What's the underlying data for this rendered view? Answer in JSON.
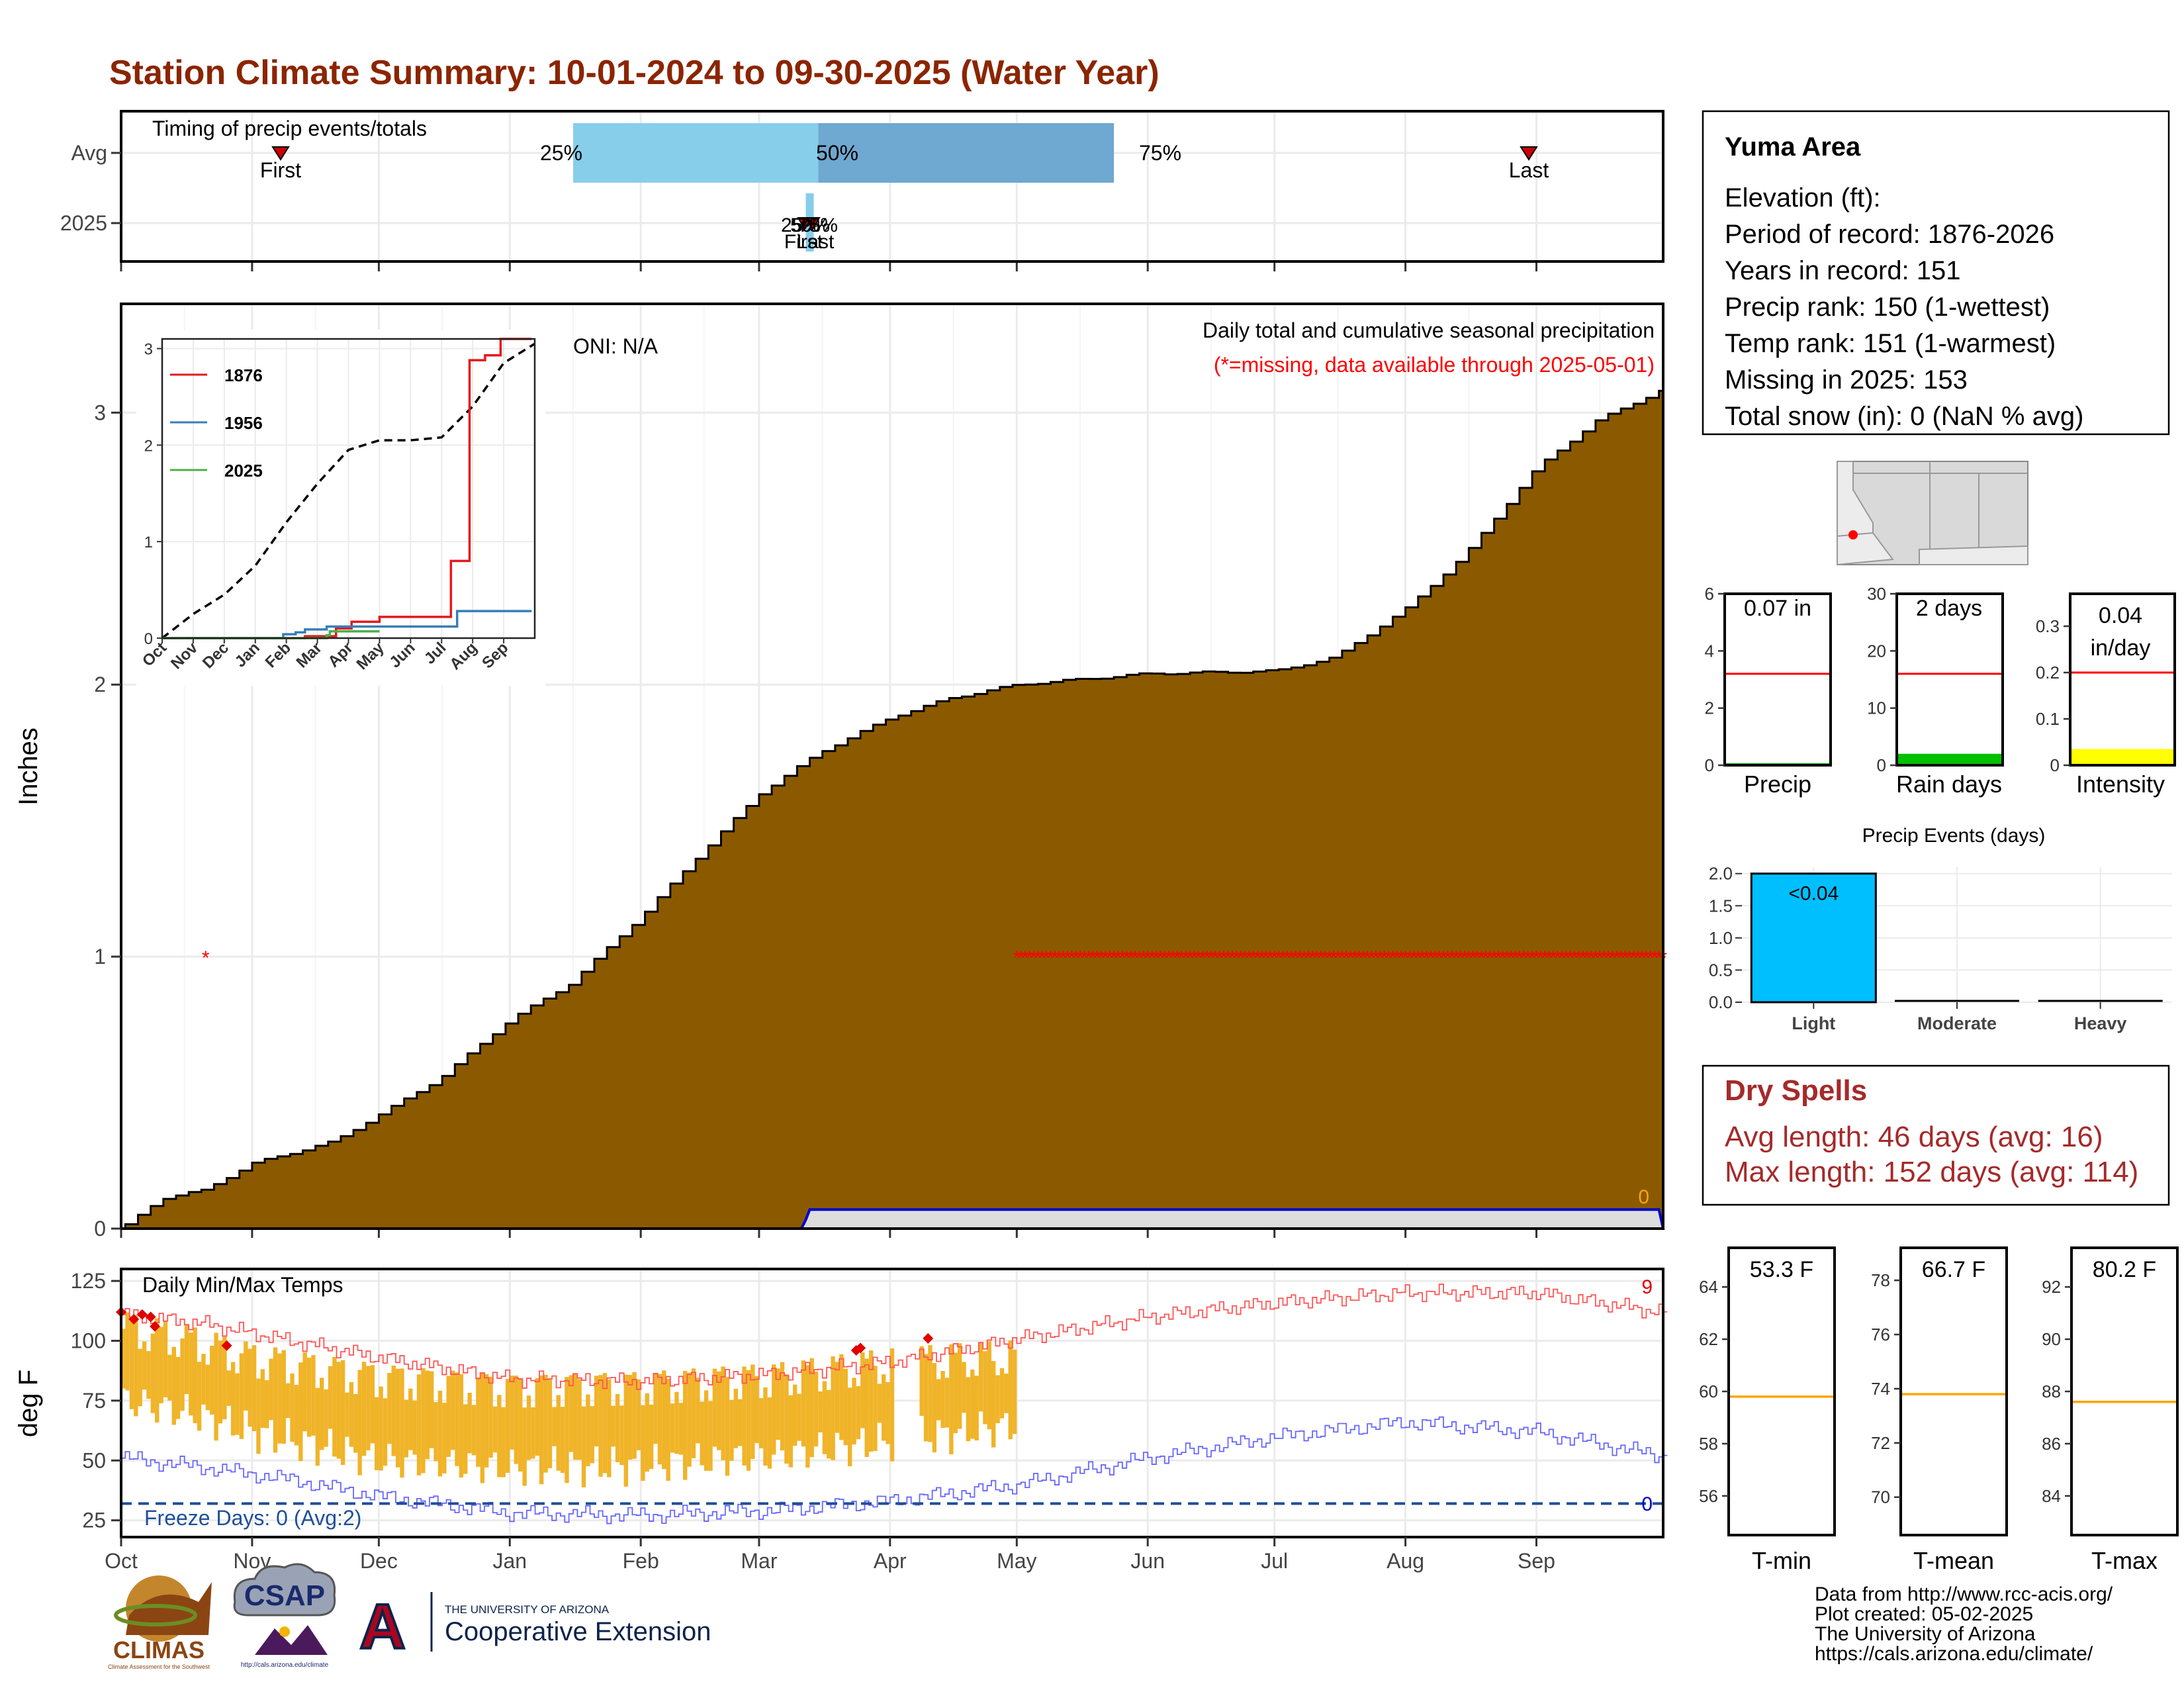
{
  "title": "Station Climate Summary: 10-01-2024 to 09-30-2025 (Water Year)",
  "timing": {
    "heading": "Timing of precip events/totals",
    "rows": [
      "Avg",
      "2025"
    ],
    "avg_first_label": "First",
    "avg_last_label": "Last",
    "pct_labels": [
      "25%",
      "50%",
      "75%"
    ],
    "overlap_labels_2025": [
      "25%",
      "50%",
      "75%",
      "First",
      "Last"
    ],
    "avg_first_date": "2024-11-12",
    "avg_last_date": "2025-09-10",
    "avg_p25_date": "2025-01-16",
    "avg_p50_date": "2025-03-15",
    "avg_p75_date": "2025-05-24",
    "y2025_date": "2025-03-13"
  },
  "precip_panel": {
    "ylabel": "Inches",
    "annotation_title": "Daily total and cumulative seasonal precipitation",
    "annotation_missing": "(*=missing, data available through 2025-05-01)",
    "oni": "ONI: N/A",
    "snow_total_label": "0",
    "ylim": [
      0,
      3.4
    ],
    "yticks": [
      0,
      1,
      2,
      3
    ],
    "missing_marker_label": "*",
    "missing_marker_single": {
      "date": "2024-10-21",
      "value": 1.0
    },
    "missing_marker_run": {
      "from": "2025-05-01",
      "to": "2025-09-30",
      "value": 1.0
    },
    "colors": {
      "cumulative_avg_fill": "#8B5A00",
      "missing": "#ff0000",
      "obs_line": "#0000cc",
      "obs_fill": "#dddddd",
      "snow": "#ffa500"
    },
    "cumulative_avg": [
      {
        "date": "2024-10-01",
        "value": 0.0
      },
      {
        "date": "2024-10-10",
        "value": 0.11
      },
      {
        "date": "2024-10-20",
        "value": 0.14
      },
      {
        "date": "2024-11-01",
        "value": 0.24
      },
      {
        "date": "2024-11-20",
        "value": 0.32
      },
      {
        "date": "2024-12-01",
        "value": 0.42
      },
      {
        "date": "2024-12-15",
        "value": 0.55
      },
      {
        "date": "2025-01-01",
        "value": 0.77
      },
      {
        "date": "2025-01-15",
        "value": 0.9
      },
      {
        "date": "2025-02-01",
        "value": 1.15
      },
      {
        "date": "2025-02-15",
        "value": 1.38
      },
      {
        "date": "2025-03-01",
        "value": 1.6
      },
      {
        "date": "2025-03-15",
        "value": 1.75
      },
      {
        "date": "2025-04-01",
        "value": 1.88
      },
      {
        "date": "2025-04-15",
        "value": 1.95
      },
      {
        "date": "2025-05-01",
        "value": 2.0
      },
      {
        "date": "2025-06-01",
        "value": 2.04
      },
      {
        "date": "2025-07-01",
        "value": 2.05
      },
      {
        "date": "2025-07-15",
        "value": 2.1
      },
      {
        "date": "2025-08-01",
        "value": 2.28
      },
      {
        "date": "2025-08-15",
        "value": 2.48
      },
      {
        "date": "2025-09-01",
        "value": 2.8
      },
      {
        "date": "2025-09-15",
        "value": 2.97
      },
      {
        "date": "2025-09-30",
        "value": 3.08
      }
    ],
    "observed_2025": [
      {
        "date": "2024-10-01",
        "value": 0.0
      },
      {
        "date": "2025-03-11",
        "value": 0.0
      },
      {
        "date": "2025-03-12",
        "value": 0.03
      },
      {
        "date": "2025-03-13",
        "value": 0.07
      },
      {
        "date": "2025-09-30",
        "value": 0.07
      }
    ]
  },
  "inset": {
    "legend": [
      "1876",
      "1956",
      "2025"
    ],
    "colors": [
      "#e41a1c",
      "#377eb8",
      "#4daf4a"
    ],
    "xticks": [
      "Oct",
      "Nov",
      "Dec",
      "Jan",
      "Feb",
      "Mar",
      "Apr",
      "May",
      "Jun",
      "Jul",
      "Aug",
      "Sep"
    ],
    "yticks": [
      0,
      1,
      2,
      3
    ],
    "ylim": [
      0,
      3.1
    ],
    "avg_cumulative": [
      0.0,
      0.25,
      0.45,
      0.75,
      1.2,
      1.6,
      1.95,
      2.05,
      2.05,
      2.08,
      2.4,
      2.85,
      3.05
    ],
    "series": [
      {
        "name": "1876",
        "points": [
          [
            0,
            0
          ],
          [
            4.6,
            0
          ],
          [
            4.6,
            0.02
          ],
          [
            5.6,
            0.02
          ],
          [
            5.6,
            0.1
          ],
          [
            6.1,
            0.1
          ],
          [
            6.1,
            0.17
          ],
          [
            7.0,
            0.17
          ],
          [
            7.0,
            0.22
          ],
          [
            9.3,
            0.22
          ],
          [
            9.3,
            0.8
          ],
          [
            9.9,
            0.8
          ],
          [
            9.9,
            2.88
          ],
          [
            10.4,
            2.88
          ],
          [
            10.4,
            2.93
          ],
          [
            10.9,
            2.93
          ],
          [
            10.9,
            3.15
          ],
          [
            11.9,
            3.15
          ]
        ]
      },
      {
        "name": "1956",
        "points": [
          [
            0,
            0
          ],
          [
            3.9,
            0
          ],
          [
            3.9,
            0.04
          ],
          [
            4.3,
            0.04
          ],
          [
            4.3,
            0.06
          ],
          [
            4.6,
            0.06
          ],
          [
            4.6,
            0.09
          ],
          [
            5.3,
            0.09
          ],
          [
            5.3,
            0.12
          ],
          [
            9.5,
            0.12
          ],
          [
            9.5,
            0.28
          ],
          [
            11.9,
            0.28
          ]
        ]
      },
      {
        "name": "2025",
        "points": [
          [
            0,
            0
          ],
          [
            5.3,
            0
          ],
          [
            5.3,
            0.03
          ],
          [
            5.4,
            0.03
          ],
          [
            5.4,
            0.07
          ],
          [
            7.0,
            0.07
          ]
        ]
      }
    ]
  },
  "temp_panel": {
    "ylabel": "deg F",
    "label": "Daily Min/Max Temps",
    "freeze_label": "Freeze Days: 0 (Avg:2)",
    "record_count": "9",
    "freeze_count": "0",
    "ylim": [
      18,
      130
    ],
    "yticks": [
      25,
      50,
      75,
      100,
      125
    ],
    "freeze_threshold": 32,
    "colors": {
      "bars": "#F0B429",
      "record_max": "#ff5555",
      "record_min": "#6666ff",
      "freeze": "#1f4e99",
      "record_point": "#e00000"
    },
    "data_end": "2025-05-01",
    "record_max_curve": [
      [
        0,
        111
      ],
      [
        20,
        107
      ],
      [
        40,
        100
      ],
      [
        61,
        93
      ],
      [
        92,
        84
      ],
      [
        123,
        83
      ],
      [
        154,
        86
      ],
      [
        182,
        91
      ],
      [
        213,
        101
      ],
      [
        243,
        110
      ],
      [
        274,
        116
      ],
      [
        304,
        120
      ],
      [
        335,
        120
      ],
      [
        364,
        112
      ]
    ],
    "record_min_curve": [
      [
        0,
        51
      ],
      [
        20,
        47
      ],
      [
        40,
        42
      ],
      [
        61,
        35
      ],
      [
        92,
        28
      ],
      [
        123,
        27
      ],
      [
        154,
        29
      ],
      [
        182,
        33
      ],
      [
        213,
        40
      ],
      [
        243,
        51
      ],
      [
        274,
        60
      ],
      [
        304,
        66
      ],
      [
        335,
        62
      ],
      [
        364,
        52
      ]
    ],
    "daily_max_profile": [
      [
        0,
        105
      ],
      [
        15,
        100
      ],
      [
        31,
        92
      ],
      [
        61,
        84
      ],
      [
        92,
        80
      ],
      [
        123,
        81
      ],
      [
        154,
        84
      ],
      [
        182,
        90
      ],
      [
        212,
        93
      ]
    ],
    "daily_min_profile": [
      [
        0,
        75
      ],
      [
        15,
        70
      ],
      [
        31,
        62
      ],
      [
        61,
        50
      ],
      [
        92,
        47
      ],
      [
        123,
        48
      ],
      [
        154,
        52
      ],
      [
        182,
        58
      ],
      [
        212,
        65
      ]
    ],
    "records_set": [
      {
        "date": "2024-10-01",
        "value": 112
      },
      {
        "date": "2024-10-04",
        "value": 109
      },
      {
        "date": "2024-10-06",
        "value": 111
      },
      {
        "date": "2024-10-08",
        "value": 110
      },
      {
        "date": "2024-10-09",
        "value": 106
      },
      {
        "date": "2024-10-26",
        "value": 98
      },
      {
        "date": "2025-03-24",
        "value": 96
      },
      {
        "date": "2025-03-25",
        "value": 97
      },
      {
        "date": "2025-04-10",
        "value": 101
      }
    ]
  },
  "month_labels": [
    "Oct",
    "Nov",
    "Dec",
    "Jan",
    "Feb",
    "Mar",
    "Apr",
    "May",
    "Jun",
    "Jul",
    "Aug",
    "Sep"
  ],
  "station": {
    "name": "Yuma Area",
    "lines": [
      "Elevation (ft):",
      "Period of record: 1876-2026",
      "Years in record: 151",
      "Precip rank: 150 (1-wettest)",
      "Temp rank: 151 (1-warmest)",
      "Missing in 2025: 153",
      "Total snow (in): 0 (NaN % avg)"
    ]
  },
  "mini_precip": {
    "value_label": "0.07 in",
    "xlabel": "Precip",
    "yticks": [
      0,
      2,
      4,
      6
    ],
    "ylim": [
      0,
      6.0
    ],
    "value": 0.07,
    "avg": 3.2
  },
  "mini_raindays": {
    "value_label": "2 days",
    "xlabel": "Rain days",
    "yticks": [
      0,
      10,
      20,
      30
    ],
    "ylim": [
      0,
      30
    ],
    "value": 2,
    "avg": 16
  },
  "mini_intensity": {
    "value_label_1": "0.04",
    "value_label_2": "in/day",
    "xlabel": "Intensity",
    "yticks": [
      0.0,
      0.1,
      0.2,
      0.3
    ],
    "ylim": [
      0,
      0.37
    ],
    "value": 0.035,
    "avg": 0.2
  },
  "precip_events": {
    "title": "Precip Events (days)",
    "categories": [
      "Light",
      "Moderate",
      "Heavy"
    ],
    "values": [
      2,
      0,
      0
    ],
    "bar_label": "<0.04",
    "yticks": [
      "0.0",
      "0.5",
      "1.0",
      "1.5",
      "2.0"
    ],
    "ylim": [
      0,
      2.1
    ],
    "color": "#00BFFF"
  },
  "dry_spells": {
    "title": "Dry Spells",
    "avg_line": "Avg length: 46 days (avg: 16)",
    "max_line": "Max length: 152 days (avg: 114)",
    "color": "#A52A2A"
  },
  "temp_minis": [
    {
      "value_label": "53.3 F",
      "xlabel": "T-min",
      "yticks": [
        56,
        58,
        60,
        62,
        64
      ],
      "ylim": [
        54.5,
        65.5
      ],
      "avg": 59.8
    },
    {
      "value_label": "66.7 F",
      "xlabel": "T-mean",
      "yticks": [
        70,
        72,
        74,
        76,
        78
      ],
      "ylim": [
        68.6,
        79.2
      ],
      "avg": 73.8
    },
    {
      "value_label": "80.2 F",
      "xlabel": "T-max",
      "yticks": [
        84,
        86,
        88,
        90,
        92
      ],
      "ylim": [
        82.5,
        93.5
      ],
      "avg": 87.6
    }
  ],
  "footer": {
    "lines": [
      "Data from http://www.rcc-acis.org/",
      "Plot created: 05-02-2025",
      "The University of Arizona",
      "https://cals.arizona.edu/climate/"
    ]
  },
  "logos": {
    "climas": "CLIMAS",
    "climas_sub": "Climate Assessment for the Southwest",
    "csap": "CSAP",
    "csap_url": "http://cals.arizona.edu/climate",
    "ua_letter": "A",
    "ua_small": "THE UNIVERSITY OF ARIZONA",
    "ua_big": "Cooperative Extension"
  }
}
